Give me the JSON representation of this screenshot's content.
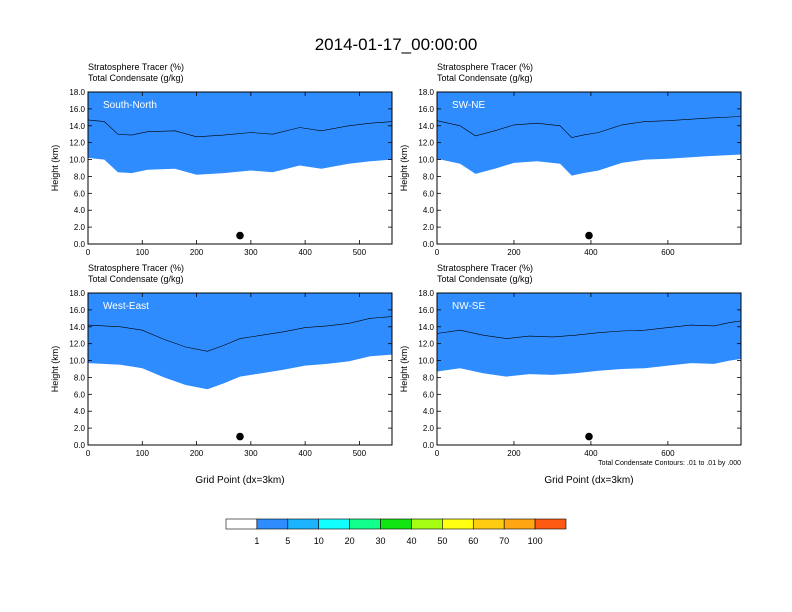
{
  "title": "2014-01-17_00:00:00",
  "colors": [
    "#ffffff",
    "#2f8cff",
    "#1cb4ff",
    "#12ffff",
    "#12ff8c",
    "#12e612",
    "#a6ff12",
    "#ffff12",
    "#ffcc12",
    "#ffa612",
    "#ff5a12",
    "#ff1212"
  ],
  "colorbar_labels": [
    "1",
    "5",
    "10",
    "20",
    "30",
    "40",
    "50",
    "60",
    "70",
    "100"
  ],
  "panels": [
    {
      "label": "South-North",
      "line1": "Stratosphere Tracer   (%)",
      "line2": "Total Condensate   (g/kg)",
      "ylabel": "Height (km)",
      "xlabel": "",
      "xticks": [
        "0",
        "100",
        "200",
        "300",
        "400",
        "500"
      ],
      "yticks": [
        "0.0",
        "2.0",
        "4.0",
        "6.0",
        "8.0",
        "10.0",
        "12.0",
        "14.0",
        "16.0",
        "18.0"
      ],
      "note": ""
    },
    {
      "label": "SW-NE",
      "line1": "Stratosphere Tracer   (%)",
      "line2": "Total Condensate   (g/kg)",
      "ylabel": "Height (km)",
      "xlabel": "",
      "xticks": [
        "0",
        "200",
        "400",
        "600"
      ],
      "yticks": [
        "0.0",
        "2.0",
        "4.0",
        "6.0",
        "8.0",
        "10.0",
        "12.0",
        "14.0",
        "16.0",
        "18.0"
      ],
      "note": ""
    },
    {
      "label": "West-East",
      "line1": "Stratosphere Tracer   (%)",
      "line2": "Total Condensate   (g/kg)",
      "ylabel": "Height (km)",
      "xlabel": "Grid Point (dx=3km)",
      "xticks": [
        "0",
        "100",
        "200",
        "300",
        "400",
        "500"
      ],
      "yticks": [
        "0.0",
        "2.0",
        "4.0",
        "6.0",
        "8.0",
        "10.0",
        "12.0",
        "14.0",
        "16.0",
        "18.0"
      ],
      "note": ""
    },
    {
      "label": "NW-SE",
      "line1": "Stratosphere Tracer   (%)",
      "line2": "Total Condensate   (g/kg)",
      "ylabel": "Height (km)",
      "xlabel": "Grid Point (dx=3km)",
      "xticks": [
        "0",
        "200",
        "400",
        "600"
      ],
      "yticks": [
        "0.0",
        "2.0",
        "4.0",
        "6.0",
        "8.0",
        "10.0",
        "12.0",
        "14.0",
        "16.0",
        "18.0"
      ],
      "note": "Total Condensate Contours: .01 to .01 by .000"
    }
  ],
  "chart_data": {
    "type": "heatmap",
    "title": "2014-01-17_00:00:00",
    "ylabel": "Height (km)",
    "ylim": [
      0,
      18
    ],
    "levels": [
      1,
      5,
      10,
      20,
      30,
      40,
      50,
      60,
      70,
      100
    ],
    "panels": [
      {
        "label": "South-North",
        "xlim": [
          0,
          560
        ],
        "marker": {
          "x": 280,
          "y": 1.0
        },
        "profile": [
          {
            "x": 0,
            "h": 14.7
          },
          {
            "x": 30,
            "h": 14.5
          },
          {
            "x": 55,
            "h": 13.0
          },
          {
            "x": 80,
            "h": 12.9
          },
          {
            "x": 110,
            "h": 13.3
          },
          {
            "x": 160,
            "h": 13.4
          },
          {
            "x": 200,
            "h": 12.7
          },
          {
            "x": 250,
            "h": 12.9
          },
          {
            "x": 300,
            "h": 13.2
          },
          {
            "x": 340,
            "h": 13.0
          },
          {
            "x": 390,
            "h": 13.8
          },
          {
            "x": 430,
            "h": 13.4
          },
          {
            "x": 480,
            "h": 14.0
          },
          {
            "x": 520,
            "h": 14.3
          },
          {
            "x": 560,
            "h": 14.5
          }
        ]
      },
      {
        "label": "SW-NE",
        "xlim": [
          0,
          790
        ],
        "marker": {
          "x": 395,
          "y": 1.0
        },
        "profile": [
          {
            "x": 0,
            "h": 14.6
          },
          {
            "x": 60,
            "h": 14.0
          },
          {
            "x": 100,
            "h": 12.8
          },
          {
            "x": 150,
            "h": 13.4
          },
          {
            "x": 200,
            "h": 14.1
          },
          {
            "x": 260,
            "h": 14.3
          },
          {
            "x": 320,
            "h": 14.0
          },
          {
            "x": 350,
            "h": 12.6
          },
          {
            "x": 380,
            "h": 12.9
          },
          {
            "x": 420,
            "h": 13.2
          },
          {
            "x": 480,
            "h": 14.1
          },
          {
            "x": 540,
            "h": 14.5
          },
          {
            "x": 600,
            "h": 14.6
          },
          {
            "x": 700,
            "h": 14.9
          },
          {
            "x": 790,
            "h": 15.1
          }
        ]
      },
      {
        "label": "West-East",
        "xlim": [
          0,
          560
        ],
        "marker": {
          "x": 280,
          "y": 1.0
        },
        "profile": [
          {
            "x": 0,
            "h": 14.2
          },
          {
            "x": 60,
            "h": 14.0
          },
          {
            "x": 100,
            "h": 13.6
          },
          {
            "x": 140,
            "h": 12.5
          },
          {
            "x": 180,
            "h": 11.6
          },
          {
            "x": 220,
            "h": 11.1
          },
          {
            "x": 250,
            "h": 11.8
          },
          {
            "x": 280,
            "h": 12.6
          },
          {
            "x": 320,
            "h": 13.0
          },
          {
            "x": 360,
            "h": 13.4
          },
          {
            "x": 400,
            "h": 13.9
          },
          {
            "x": 440,
            "h": 14.1
          },
          {
            "x": 480,
            "h": 14.4
          },
          {
            "x": 520,
            "h": 15.0
          },
          {
            "x": 560,
            "h": 15.2
          }
        ]
      },
      {
        "label": "NW-SE",
        "xlim": [
          0,
          790
        ],
        "marker": {
          "x": 395,
          "y": 1.0
        },
        "profile": [
          {
            "x": 0,
            "h": 13.2
          },
          {
            "x": 60,
            "h": 13.6
          },
          {
            "x": 120,
            "h": 13.0
          },
          {
            "x": 180,
            "h": 12.6
          },
          {
            "x": 240,
            "h": 12.9
          },
          {
            "x": 300,
            "h": 12.8
          },
          {
            "x": 360,
            "h": 13.0
          },
          {
            "x": 420,
            "h": 13.3
          },
          {
            "x": 480,
            "h": 13.5
          },
          {
            "x": 540,
            "h": 13.6
          },
          {
            "x": 600,
            "h": 13.9
          },
          {
            "x": 660,
            "h": 14.2
          },
          {
            "x": 720,
            "h": 14.1
          },
          {
            "x": 760,
            "h": 14.5
          },
          {
            "x": 790,
            "h": 14.7
          }
        ]
      }
    ]
  }
}
